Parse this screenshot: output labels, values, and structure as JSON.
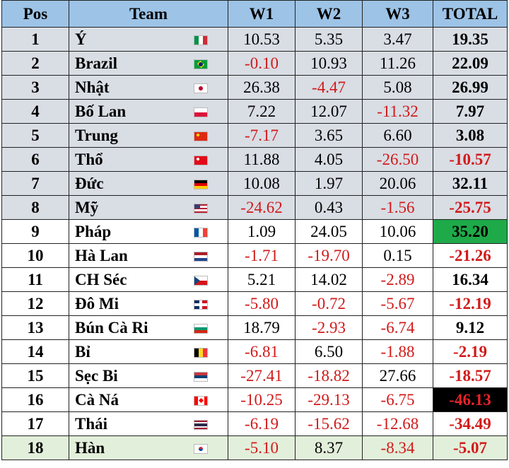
{
  "headers": {
    "pos": "Pos",
    "team": "Team",
    "w1": "W1",
    "w2": "W2",
    "w3": "W3",
    "total": "TOTAL"
  },
  "colors": {
    "header_bg": "#9dc3e6",
    "grey_row": "#d9dde4",
    "green_row": "#e2efda",
    "negative_text": "#d11a1a",
    "highlight_max": "#1faa4a",
    "highlight_min": "#000000"
  },
  "rows": [
    {
      "pos": "1",
      "team": "Ý",
      "flag": "italy-flag",
      "w1": "10.53",
      "w2": "5.35",
      "w3": "3.47",
      "total": "19.35"
    },
    {
      "pos": "2",
      "team": "Brazil",
      "flag": "brazil-flag",
      "w1": "-0.10",
      "w2": "10.93",
      "w3": "11.26",
      "total": "22.09"
    },
    {
      "pos": "3",
      "team": "Nhật",
      "flag": "japan-flag",
      "w1": "26.38",
      "w2": "-4.47",
      "w3": "5.08",
      "total": "26.99"
    },
    {
      "pos": "4",
      "team": "Bố Lan",
      "flag": "poland-flag",
      "w1": "7.22",
      "w2": "12.07",
      "w3": "-11.32",
      "total": "7.97"
    },
    {
      "pos": "5",
      "team": "Trung",
      "flag": "china-flag",
      "w1": "-7.17",
      "w2": "3.65",
      "w3": "6.60",
      "total": "3.08"
    },
    {
      "pos": "6",
      "team": "Thổ",
      "flag": "turkey-flag",
      "w1": "11.88",
      "w2": "4.05",
      "w3": "-26.50",
      "total": "-10.57"
    },
    {
      "pos": "7",
      "team": "Đức",
      "flag": "germany-flag",
      "w1": "10.08",
      "w2": "1.97",
      "w3": "20.06",
      "total": "32.11"
    },
    {
      "pos": "8",
      "team": "Mỹ",
      "flag": "usa-flag",
      "w1": "-24.62",
      "w2": "0.43",
      "w3": "-1.56",
      "total": "-25.75"
    },
    {
      "pos": "9",
      "team": "Pháp",
      "flag": "france-flag",
      "w1": "1.09",
      "w2": "24.05",
      "w3": "10.06",
      "total": "35.20"
    },
    {
      "pos": "10",
      "team": "Hà Lan",
      "flag": "netherlands-flag",
      "w1": "-1.71",
      "w2": "-19.70",
      "w3": "0.15",
      "total": "-21.26"
    },
    {
      "pos": "11",
      "team": "CH Séc",
      "flag": "czech-flag",
      "w1": "5.21",
      "w2": "14.02",
      "w3": "-2.89",
      "total": "16.34"
    },
    {
      "pos": "12",
      "team": "Đô Mi",
      "flag": "dominican-flag",
      "w1": "-5.80",
      "w2": "-0.72",
      "w3": "-5.67",
      "total": "-12.19"
    },
    {
      "pos": "13",
      "team": "Bún Cà Ri",
      "flag": "bulgaria-flag",
      "w1": "18.79",
      "w2": "-2.93",
      "w3": "-6.74",
      "total": "9.12"
    },
    {
      "pos": "14",
      "team": "Bỉ",
      "flag": "belgium-flag",
      "w1": "-6.81",
      "w2": "6.50",
      "w3": "-1.88",
      "total": "-2.19"
    },
    {
      "pos": "15",
      "team": "Sẹc Bi",
      "flag": "serbia-flag",
      "w1": "-27.41",
      "w2": "-18.82",
      "w3": "27.66",
      "total": "-18.57"
    },
    {
      "pos": "16",
      "team": "Cà Ná",
      "flag": "canada-flag",
      "w1": "-10.25",
      "w2": "-29.13",
      "w3": "-6.75",
      "total": "-46.13"
    },
    {
      "pos": "17",
      "team": "Thái",
      "flag": "thailand-flag",
      "w1": "-6.19",
      "w2": "-15.62",
      "w3": "-12.68",
      "total": "-34.49"
    },
    {
      "pos": "18",
      "team": "Hàn",
      "flag": "korea-flag",
      "w1": "-5.10",
      "w2": "8.37",
      "w3": "-8.34",
      "total": "-5.07"
    }
  ]
}
